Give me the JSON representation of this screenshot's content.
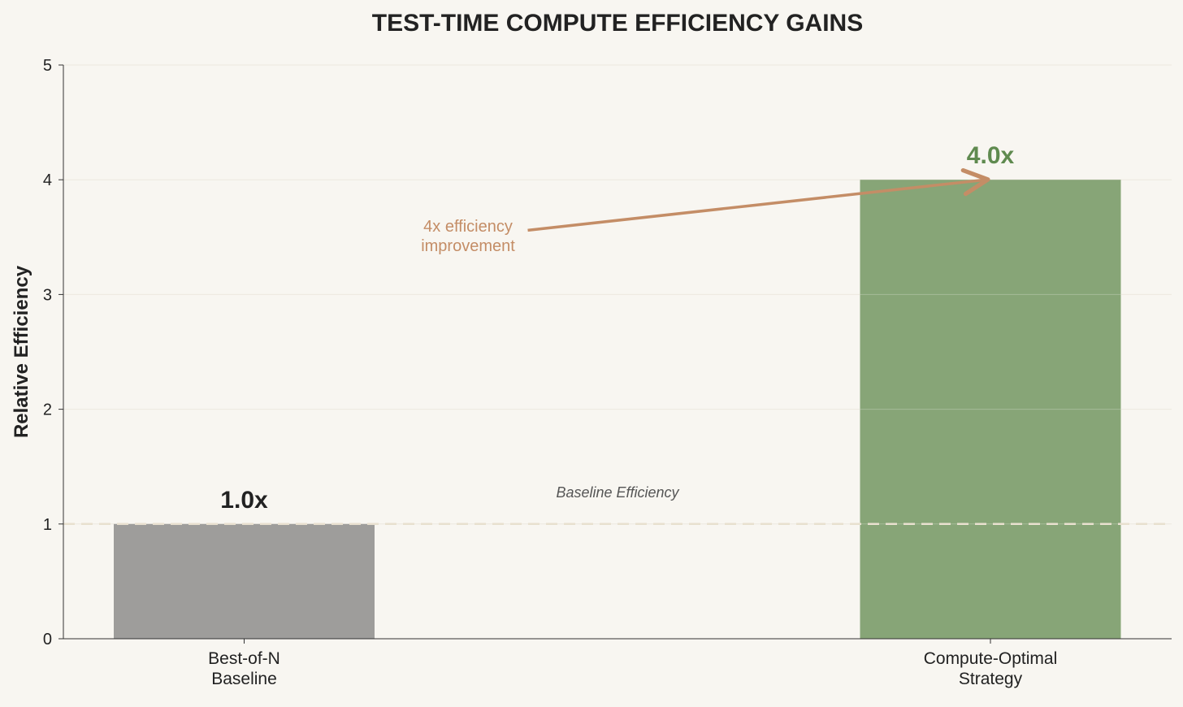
{
  "chart_data": {
    "type": "bar",
    "title": "TEST-TIME COMPUTE EFFICIENCY GAINS",
    "xlabel": "",
    "ylabel": "Relative Efficiency",
    "ylim": [
      0,
      5
    ],
    "yticks": [
      0,
      1,
      2,
      3,
      4,
      5
    ],
    "grid": true,
    "categories": [
      [
        "Best-of-N",
        "Baseline"
      ],
      [
        "Compute-Optimal",
        "Strategy"
      ]
    ],
    "values": [
      1.0,
      4.0
    ],
    "value_labels": [
      "1.0x",
      "4.0x"
    ],
    "colors": {
      "bars": [
        "#9e9d9b",
        "#87a577"
      ],
      "value_labels": [
        "#222222",
        "#5f8a4f"
      ],
      "annotation": "#c48d66",
      "reference_line": "#e8e0cf",
      "background": "#f8f6f1",
      "grid": "#ece8df"
    },
    "reference_line": {
      "y": 1,
      "label": "Baseline Efficiency",
      "style": "dashed"
    },
    "annotation": {
      "text": [
        "4x efficiency",
        "improvement"
      ],
      "from": {
        "category": 0.38,
        "y": 3.56
      },
      "to": {
        "category": 1,
        "y": 4.0
      }
    }
  }
}
